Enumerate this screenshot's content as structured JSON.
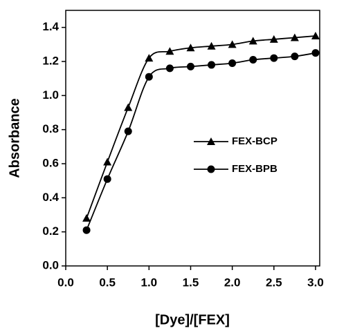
{
  "chart_data": {
    "type": "line",
    "x_label": "[Dye]/[FEX]",
    "y_label": "Absorbance",
    "x": [
      0.25,
      0.5,
      0.75,
      1.0,
      1.25,
      1.5,
      1.75,
      2.0,
      2.25,
      2.5,
      2.75,
      3.0
    ],
    "series": [
      {
        "name": "FEX-BCP",
        "color": "#000000",
        "marker": "triangle",
        "values": [
          0.28,
          0.61,
          0.93,
          1.22,
          1.26,
          1.28,
          1.29,
          1.3,
          1.32,
          1.33,
          1.34,
          1.35
        ]
      },
      {
        "name": "FEX-BPB",
        "color": "#000000",
        "marker": "circle",
        "values": [
          0.21,
          0.51,
          0.79,
          1.11,
          1.16,
          1.17,
          1.18,
          1.19,
          1.21,
          1.22,
          1.23,
          1.25
        ]
      }
    ],
    "xlim": [
      0,
      3.05
    ],
    "xticks": [
      {
        "value": 0,
        "label": "0.0"
      },
      0.5,
      {
        "value": 1,
        "label": "1.0"
      },
      1.5,
      {
        "value": 2,
        "label": "2.0"
      },
      2.5,
      {
        "value": 3,
        "label": "3.0"
      }
    ],
    "ylim": [
      0,
      1.5
    ],
    "yticks": [
      {
        "value": 0,
        "label": "0.0"
      },
      0.2,
      0.4,
      0.6,
      0.8,
      {
        "value": 1,
        "label": "1.0"
      },
      1.2,
      1.4
    ],
    "grid": false,
    "legend": "center right"
  }
}
